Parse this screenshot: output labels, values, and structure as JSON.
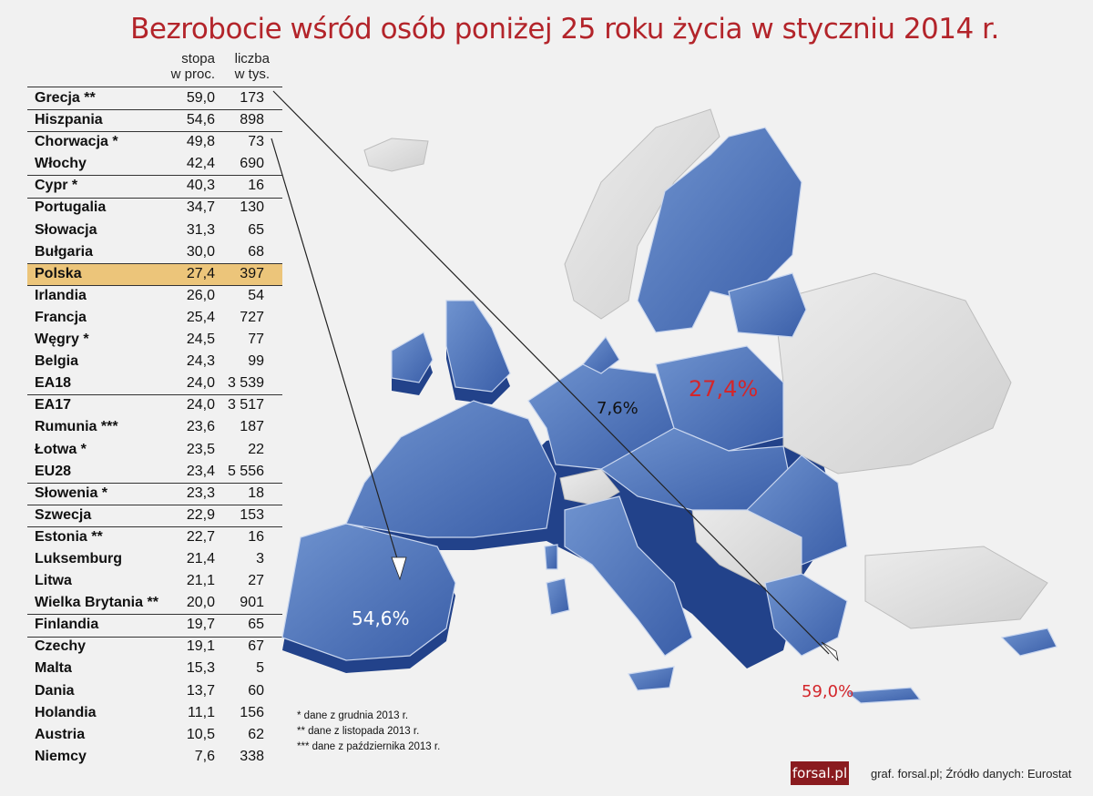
{
  "title": "Bezrobocie wśród osób poniżej 25 roku życia w styczniu 2014 r.",
  "columns": {
    "rate": [
      "stopa",
      "w proc."
    ],
    "count": [
      "liczba",
      "w tys."
    ]
  },
  "rows": [
    {
      "name": "Grecja **",
      "rate": "59,0",
      "count": "173"
    },
    {
      "name": "Hiszpania",
      "rate": "54,6",
      "count": "898"
    },
    {
      "name": "Chorwacja *",
      "rate": "49,8",
      "count": "73"
    },
    {
      "name": "Włochy",
      "rate": "42,4",
      "count": "690"
    },
    {
      "name": "Cypr *",
      "rate": "40,3",
      "count": "16"
    },
    {
      "name": "Portugalia",
      "rate": "34,7",
      "count": "130"
    },
    {
      "name": "Słowacja",
      "rate": "31,3",
      "count": "65"
    },
    {
      "name": "Bułgaria",
      "rate": "30,0",
      "count": "68"
    },
    {
      "name": "Polska",
      "rate": "27,4",
      "count": "397",
      "highlight": true
    },
    {
      "name": "Irlandia",
      "rate": "26,0",
      "count": "54"
    },
    {
      "name": "Francja",
      "rate": "25,4",
      "count": "727"
    },
    {
      "name": "Węgry *",
      "rate": "24,5",
      "count": "77"
    },
    {
      "name": "Belgia",
      "rate": "24,3",
      "count": "99"
    },
    {
      "name": "EA18",
      "rate": "24,0",
      "count": "3 539"
    },
    {
      "name": "EA17",
      "rate": "24,0",
      "count": "3 517"
    },
    {
      "name": "Rumunia ***",
      "rate": "23,6",
      "count": "187"
    },
    {
      "name": "Łotwa *",
      "rate": "23,5",
      "count": "22"
    },
    {
      "name": "EU28",
      "rate": "23,4",
      "count": "5 556"
    },
    {
      "name": "Słowenia *",
      "rate": "23,3",
      "count": "18"
    },
    {
      "name": "Szwecja",
      "rate": "22,9",
      "count": "153"
    },
    {
      "name": "Estonia **",
      "rate": "22,7",
      "count": "16"
    },
    {
      "name": "Luksemburg",
      "rate": "21,4",
      "count": "3"
    },
    {
      "name": "Litwa",
      "rate": "21,1",
      "count": "27"
    },
    {
      "name": "Wielka Brytania **",
      "rate": "20,0",
      "count": "901"
    },
    {
      "name": "Finlandia",
      "rate": "19,7",
      "count": "65"
    },
    {
      "name": "Czechy",
      "rate": "19,1",
      "count": "67"
    },
    {
      "name": "Malta",
      "rate": "15,3",
      "count": "5"
    },
    {
      "name": "Dania",
      "rate": "13,7",
      "count": "60"
    },
    {
      "name": "Holandia",
      "rate": "11,1",
      "count": "156"
    },
    {
      "name": "Austria",
      "rate": "10,5",
      "count": "62"
    },
    {
      "name": "Niemcy",
      "rate": "7,6",
      "count": "338"
    }
  ],
  "separator_after": [
    0,
    1,
    3,
    4,
    7,
    8,
    13,
    17,
    18,
    19,
    23,
    24
  ],
  "map_labels": {
    "spain": "54,6%",
    "greece": "59,0%",
    "poland": "27,4%",
    "germany": "7,6%"
  },
  "notes": [
    "* dane z grudnia 2013 r.",
    "** dane z listopada 2013 r.",
    "*** dane z października 2013 r."
  ],
  "logo": "forsal.pl",
  "source": "graf. forsal.pl;  Źródło danych: Eurostat",
  "colors": {
    "title": "#b3242a",
    "eu_fill": "#4a6fb5",
    "eu_side": "#22428a",
    "non_eu": "#dcdcdc",
    "highlight": "#ecc57a",
    "label_red": "#d3262b"
  }
}
